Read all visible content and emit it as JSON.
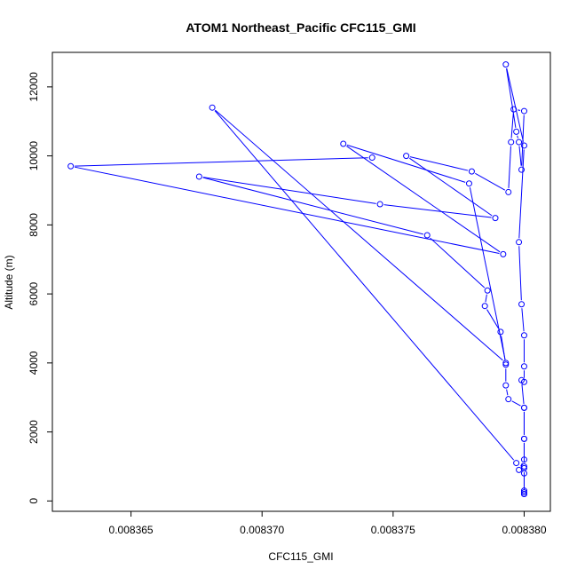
{
  "chart_data": {
    "type": "line",
    "title": "ATOM1 Northeast_Pacific CFC115_GMI",
    "xlabel": "CFC115_GMI",
    "ylabel": "Altitude (m)",
    "xlim": [
      0.008362,
      0.008381
    ],
    "ylim": [
      -300,
      13000
    ],
    "xticks": [
      0.008365,
      0.00837,
      0.008375,
      0.00838
    ],
    "xtick_labels": [
      "0.008365",
      "0.008370",
      "0.008375",
      "0.008380"
    ],
    "yticks": [
      0,
      2000,
      4000,
      6000,
      8000,
      10000,
      12000
    ],
    "ytick_labels": [
      "0",
      "2000",
      "4000",
      "6000",
      "8000",
      "10000",
      "12000"
    ],
    "series": [
      {
        "color": "#0000ff",
        "marker": "open-circle",
        "points": [
          [
            0.00838,
            200
          ],
          [
            0.00838,
            250
          ],
          [
            0.00838,
            300
          ],
          [
            0.00838,
            800
          ],
          [
            0.0083798,
            900
          ],
          [
            0.00838,
            1200
          ],
          [
            0.00838,
            1800
          ],
          [
            0.00838,
            2700
          ],
          [
            0.0083794,
            2950
          ],
          [
            0.0083793,
            3350
          ],
          [
            0.0083793,
            3950
          ],
          [
            0.0083791,
            4900
          ],
          [
            0.0083785,
            5650
          ],
          [
            0.0083786,
            6100
          ],
          [
            0.0083763,
            7700
          ],
          [
            0.0083676,
            9400
          ],
          [
            0.0083745,
            8600
          ],
          [
            0.0083789,
            8200
          ],
          [
            0.0083755,
            10000
          ],
          [
            0.008378,
            9550
          ],
          [
            0.0083794,
            8950
          ],
          [
            0.0083795,
            10400
          ],
          [
            0.0083796,
            11350
          ],
          [
            0.00838,
            11300
          ],
          [
            0.0083799,
            9600
          ],
          [
            0.0083798,
            10400
          ],
          [
            0.0083797,
            10700
          ],
          [
            0.0083793,
            12650
          ],
          [
            0.00838,
            10300
          ],
          [
            0.0083798,
            7500
          ],
          [
            0.0083799,
            5700
          ],
          [
            0.00838,
            4800
          ],
          [
            0.00838,
            3900
          ],
          [
            0.00838,
            3450
          ],
          [
            0.0083799,
            3500
          ],
          [
            0.00838,
            2700
          ],
          [
            0.00838,
            1800
          ],
          [
            0.00838,
            1000
          ],
          [
            0.00838,
            950
          ],
          [
            0.00838,
            200
          ]
        ]
      },
      {
        "color": "#0000ff",
        "marker": "open-circle",
        "points": [
          [
            0.0083742,
            9950
          ],
          [
            0.0083627,
            9700
          ],
          [
            0.0083792,
            7150
          ],
          [
            0.0083731,
            10350
          ],
          [
            0.0083779,
            9200
          ],
          [
            0.0083793,
            4000
          ],
          [
            0.0083681,
            11400
          ],
          [
            0.0083797,
            1100
          ]
        ]
      }
    ]
  }
}
